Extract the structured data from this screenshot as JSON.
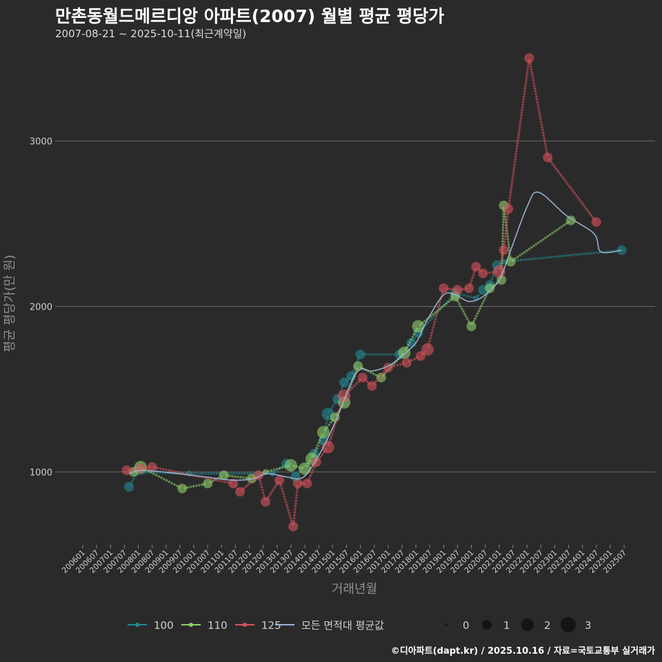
{
  "chart_data": {
    "type": "scatter",
    "title": "만촌동월드메르디앙 아파트(2007) 월별 평균 평당가",
    "subtitle": "2007-08-21 ~ 2025-10-11(최근계약일)",
    "xlabel": "거래년월",
    "ylabel": "평균 평당가(만 원)",
    "credit": "©디아파트(dapt.kr) / 2025.10.16 / 자료=국토교통부 실거래가",
    "xlim": [
      "2006-01",
      "2025-07"
    ],
    "ylim": [
      560,
      3560
    ],
    "yticks": [
      1000,
      2000,
      3000
    ],
    "xticks": [
      "200601",
      "200607",
      "200701",
      "200707",
      "200801",
      "200807",
      "200901",
      "200907",
      "201001",
      "201007",
      "201101",
      "201107",
      "201201",
      "201207",
      "201301",
      "201307",
      "201401",
      "201407",
      "201501",
      "201507",
      "201601",
      "201607",
      "201701",
      "201707",
      "201801",
      "201807",
      "201901",
      "201907",
      "202001",
      "202007",
      "202101",
      "202107",
      "202201",
      "202207",
      "202301",
      "202307",
      "202401",
      "202407",
      "202501",
      "202507"
    ],
    "size_legend": {
      "title": "",
      "values": [
        "0",
        "1",
        "2",
        "3"
      ]
    },
    "series": [
      {
        "name": "100",
        "color": "#1f8c94",
        "points": [
          [
            "2007-09",
            910,
            2
          ],
          [
            "2008-01",
            1010,
            2
          ],
          [
            "2008-03",
            1000,
            1
          ],
          [
            "2009-11",
            990,
            1
          ],
          [
            "2012-11",
            990,
            1
          ],
          [
            "2013-05",
            1050,
            2
          ],
          [
            "2013-09",
            970,
            2
          ],
          [
            "2014-05",
            1110,
            2
          ],
          [
            "2014-09",
            1190,
            2
          ],
          [
            "2014-11",
            1350,
            3
          ],
          [
            "2015-03",
            1440,
            2
          ],
          [
            "2015-06",
            1540,
            2
          ],
          [
            "2015-09",
            1580,
            2
          ],
          [
            "2016-01",
            1710,
            2
          ],
          [
            "2017-06",
            1710,
            2
          ],
          [
            "2017-11",
            1780,
            2
          ],
          [
            "2018-02",
            1840,
            2
          ],
          [
            "2019-06",
            2080,
            2
          ],
          [
            "2020-03",
            2050,
            1
          ],
          [
            "2020-06",
            2100,
            2
          ],
          [
            "2020-09",
            2130,
            2
          ],
          [
            "2020-12",
            2250,
            2
          ],
          [
            "2021-03",
            2270,
            1
          ],
          [
            "2025-06",
            2340,
            2
          ]
        ]
      },
      {
        "name": "110",
        "color": "#8fd16b",
        "points": [
          [
            "2007-11",
            1000,
            2
          ],
          [
            "2008-02",
            1030,
            3
          ],
          [
            "2009-08",
            900,
            2
          ],
          [
            "2010-07",
            930,
            2
          ],
          [
            "2011-02",
            980,
            2
          ],
          [
            "2012-02",
            960,
            2
          ],
          [
            "2012-08",
            1000,
            1
          ],
          [
            "2013-07",
            1040,
            3
          ],
          [
            "2014-01",
            1020,
            3
          ],
          [
            "2014-04",
            1080,
            3
          ],
          [
            "2014-09",
            1240,
            3
          ],
          [
            "2015-02",
            1330,
            2
          ],
          [
            "2015-06",
            1420,
            3
          ],
          [
            "2015-12",
            1640,
            2
          ],
          [
            "2016-10",
            1570,
            2
          ],
          [
            "2017-08",
            1720,
            3
          ],
          [
            "2018-02",
            1880,
            3
          ],
          [
            "2019-06",
            2060,
            2
          ],
          [
            "2020-01",
            1880,
            2
          ],
          [
            "2020-09",
            2110,
            2
          ],
          [
            "2021-02",
            2160,
            2
          ],
          [
            "2021-03",
            2610,
            2
          ],
          [
            "2021-06",
            2270,
            2
          ],
          [
            "2023-08",
            2520,
            2
          ]
        ]
      },
      {
        "name": "125",
        "color": "#d9535b",
        "points": [
          [
            "2007-08",
            1010,
            2
          ],
          [
            "2008-02",
            1020,
            2
          ],
          [
            "2008-07",
            1030,
            2
          ],
          [
            "2011-06",
            930,
            2
          ],
          [
            "2011-09",
            880,
            2
          ],
          [
            "2012-05",
            980,
            2
          ],
          [
            "2012-08",
            820,
            2
          ],
          [
            "2013-02",
            950,
            2
          ],
          [
            "2013-08",
            670,
            2
          ],
          [
            "2013-10",
            930,
            2
          ],
          [
            "2014-02",
            930,
            2
          ],
          [
            "2014-06",
            1060,
            2
          ],
          [
            "2014-11",
            1150,
            3
          ],
          [
            "2015-06",
            1460,
            3
          ],
          [
            "2016-02",
            1570,
            2
          ],
          [
            "2016-06",
            1520,
            2
          ],
          [
            "2017-01",
            1630,
            2
          ],
          [
            "2017-09",
            1660,
            2
          ],
          [
            "2018-03",
            1700,
            2
          ],
          [
            "2018-06",
            1740,
            3
          ],
          [
            "2019-01",
            2110,
            2
          ],
          [
            "2019-07",
            2100,
            2
          ],
          [
            "2019-12",
            2110,
            2
          ],
          [
            "2020-03",
            2240,
            2
          ],
          [
            "2020-06",
            2200,
            2
          ],
          [
            "2021-01",
            2210,
            3
          ],
          [
            "2021-03",
            2340,
            2
          ],
          [
            "2021-05",
            2590,
            2
          ],
          [
            "2022-02",
            3500,
            2
          ],
          [
            "2022-10",
            2900,
            2
          ],
          [
            "2024-07",
            2510,
            2
          ]
        ]
      },
      {
        "name": "모든 면적대 평균값",
        "color": "#9bb5d4",
        "points": [
          [
            "2007-09",
            990
          ],
          [
            "2008-03",
            1010
          ],
          [
            "2009-06",
            990
          ],
          [
            "2010-06",
            970
          ],
          [
            "2011-06",
            950
          ],
          [
            "2012-03",
            960
          ],
          [
            "2012-09",
            990
          ],
          [
            "2013-05",
            970
          ],
          [
            "2013-11",
            960
          ],
          [
            "2014-03",
            1010
          ],
          [
            "2014-09",
            1150
          ],
          [
            "2015-03",
            1330
          ],
          [
            "2015-09",
            1540
          ],
          [
            "2016-01",
            1620
          ],
          [
            "2016-06",
            1610
          ],
          [
            "2017-01",
            1640
          ],
          [
            "2017-06",
            1690
          ],
          [
            "2018-01",
            1780
          ],
          [
            "2018-06",
            1920
          ],
          [
            "2019-01",
            2070
          ],
          [
            "2019-06",
            2070
          ],
          [
            "2019-12",
            2030
          ],
          [
            "2020-06",
            2060
          ],
          [
            "2021-01",
            2160
          ],
          [
            "2021-06",
            2340
          ],
          [
            "2022-01",
            2600
          ],
          [
            "2022-06",
            2690
          ],
          [
            "2023-06",
            2550
          ],
          [
            "2024-06",
            2440
          ],
          [
            "2024-09",
            2330
          ],
          [
            "2025-06",
            2340
          ]
        ]
      }
    ]
  }
}
